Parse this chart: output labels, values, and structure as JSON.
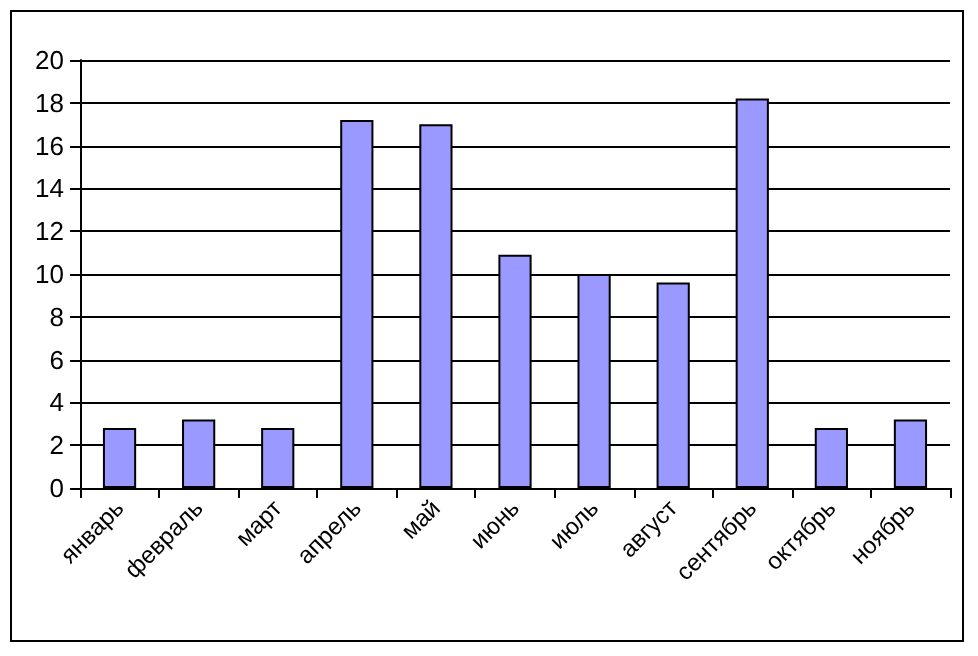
{
  "chart_data": {
    "type": "bar",
    "categories": [
      "январь",
      "февраль",
      "март",
      "апрель",
      "май",
      "июнь",
      "июль",
      "август",
      "сентябрь",
      "октябрь",
      "ноябрь"
    ],
    "values": [
      2.8,
      3.2,
      2.8,
      17.2,
      17.0,
      10.9,
      10.0,
      9.6,
      18.2,
      2.8,
      3.2
    ],
    "color": "#9999ff",
    "ylim": [
      0,
      20
    ],
    "yticks": [
      0,
      2,
      4,
      6,
      8,
      10,
      12,
      14,
      16,
      18,
      20
    ],
    "grid": "y"
  }
}
